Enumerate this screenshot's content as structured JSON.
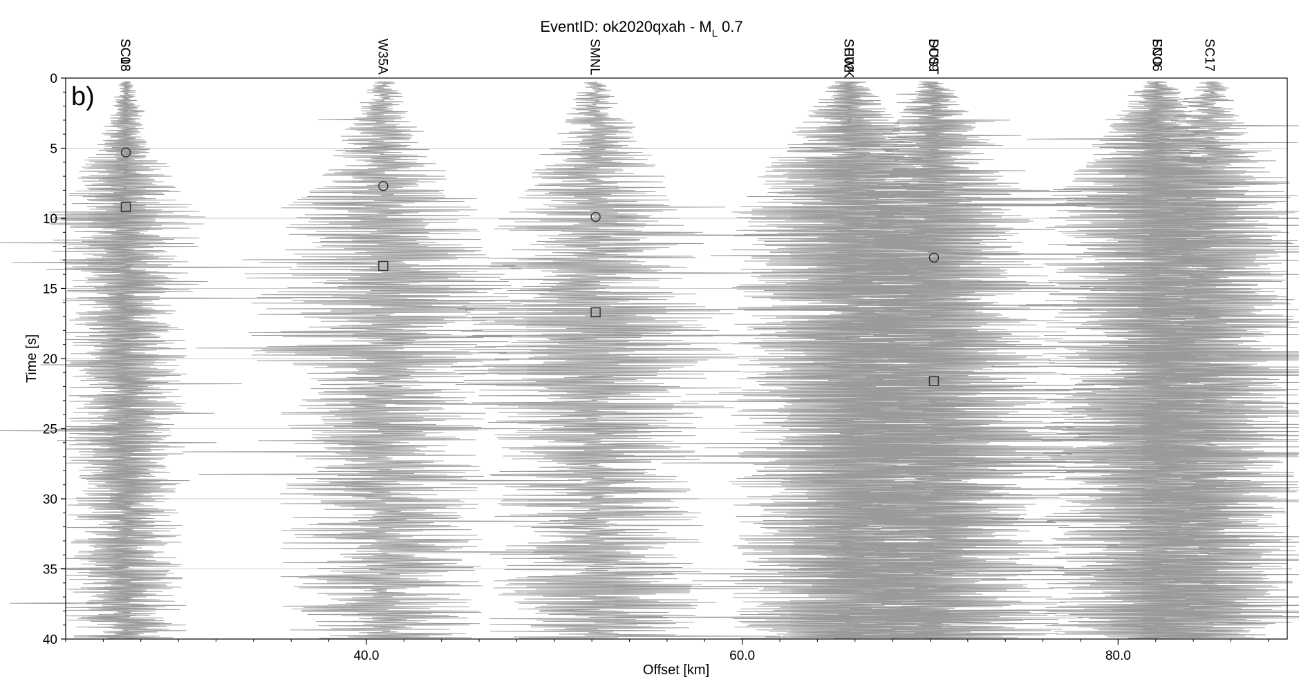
{
  "chart_data": {
    "type": "record-section",
    "title": {
      "prefix": "EventID: ok2020qxah - M",
      "subscript": "L",
      "suffix": " 0.7"
    },
    "panel_label": "b)",
    "xlabel": "Offset [km]",
    "ylabel": "Time [s]",
    "xlim": [
      24.0,
      89.0
    ],
    "ylim": [
      0,
      40
    ],
    "y_inverted": true,
    "x_ticks": [
      40.0,
      60.0,
      80.0
    ],
    "x_tick_labels": [
      "40.0",
      "60.0",
      "80.0"
    ],
    "y_ticks": [
      0,
      5,
      10,
      15,
      20,
      25,
      30,
      35,
      40
    ],
    "y_tick_labels": [
      "0",
      "5",
      "10",
      "15",
      "20",
      "25",
      "30",
      "35",
      "40"
    ],
    "grid": "horizontal",
    "trace_color": "#9a9a9a",
    "stations": [
      {
        "label": "SC18",
        "offset": 27.2,
        "p_pick": null,
        "s_pick": null,
        "amp": 2.2
      },
      {
        "label": "SC08",
        "offset": 27.2,
        "p_pick": 5.3,
        "s_pick": 9.2,
        "amp": 2.6
      },
      {
        "label": "W35A",
        "offset": 40.9,
        "p_pick": 7.7,
        "s_pick": 13.4,
        "amp": 4.4
      },
      {
        "label": "SMNL",
        "offset": 52.2,
        "p_pick": 9.9,
        "s_pick": 16.7,
        "amp": 4.6
      },
      {
        "label": "SC02",
        "offset": 65.7,
        "p_pick": null,
        "s_pick": null,
        "amp": 6.4
      },
      {
        "label": "SHWK",
        "offset": 65.7,
        "p_pick": null,
        "s_pick": null,
        "amp": 6.0
      },
      {
        "label": "SC09",
        "offset": 70.2,
        "p_pick": 12.8,
        "s_pick": 21.6,
        "amp": 5.6
      },
      {
        "label": "DUST",
        "offset": 70.2,
        "p_pick": null,
        "s_pick": null,
        "amp": 5.2
      },
      {
        "label": "SC06",
        "offset": 82.1,
        "p_pick": null,
        "s_pick": null,
        "amp": 6.2
      },
      {
        "label": "FNO",
        "offset": 82.1,
        "p_pick": null,
        "s_pick": null,
        "amp": 5.8
      },
      {
        "label": "SC17",
        "offset": 84.9,
        "p_pick": null,
        "s_pick": null,
        "amp": 5.4
      }
    ]
  }
}
